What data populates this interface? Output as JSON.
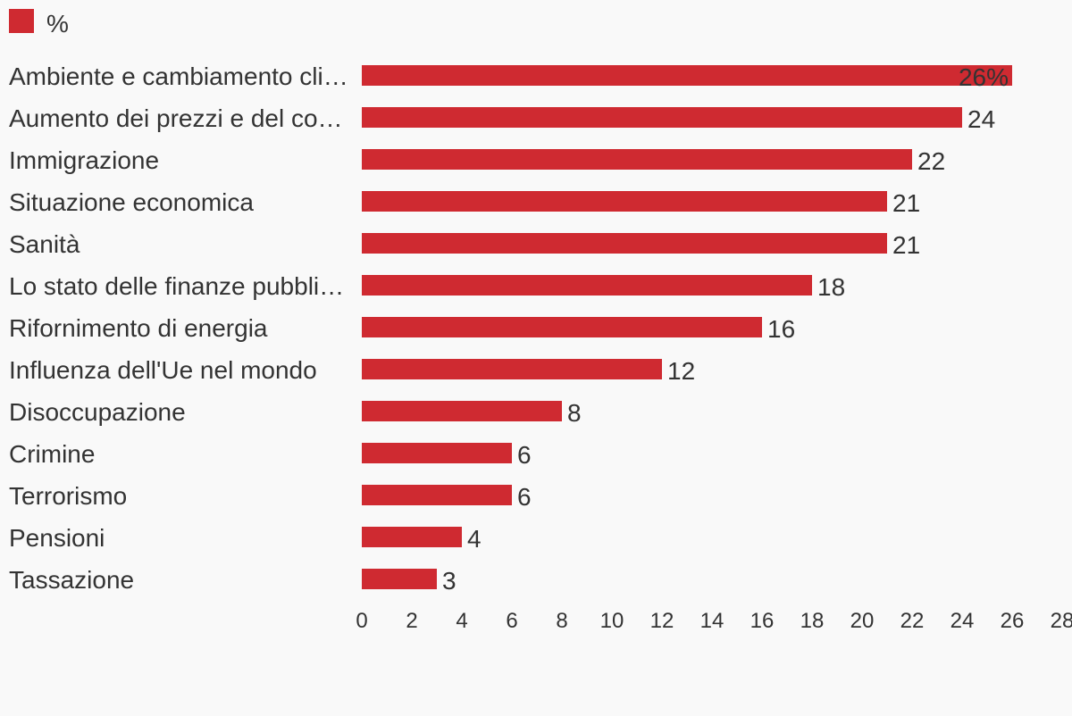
{
  "chart_data": {
    "type": "bar",
    "orientation": "horizontal",
    "legend": {
      "label": "%",
      "color": "#cf2a31",
      "placement": "top-left"
    },
    "categories": [
      "Ambiente e cambiamento cli…",
      "Aumento dei prezzi e del co…",
      "Immigrazione",
      "Situazione economica",
      "Sanità",
      "Lo stato delle finanze pubbli…",
      "Rifornimento di energia",
      "Influenza dell'Ue nel mondo",
      "Disoccupazione",
      "Crimine",
      "Terrorismo",
      "Pensioni",
      "Tassazione"
    ],
    "values": [
      26,
      24,
      22,
      21,
      21,
      18,
      16,
      12,
      8,
      6,
      6,
      4,
      3
    ],
    "value_labels": [
      "26%",
      "24",
      "22",
      "21",
      "21",
      "18",
      "16",
      "12",
      "8",
      "6",
      "6",
      "4",
      "3"
    ],
    "xlim": [
      0,
      28
    ],
    "xticks": [
      0,
      2,
      4,
      6,
      8,
      10,
      12,
      14,
      16,
      18,
      20,
      22,
      24,
      26,
      28
    ],
    "grid": false,
    "bar_color": "#cf2a31",
    "title": "",
    "xlabel": "",
    "ylabel": ""
  }
}
